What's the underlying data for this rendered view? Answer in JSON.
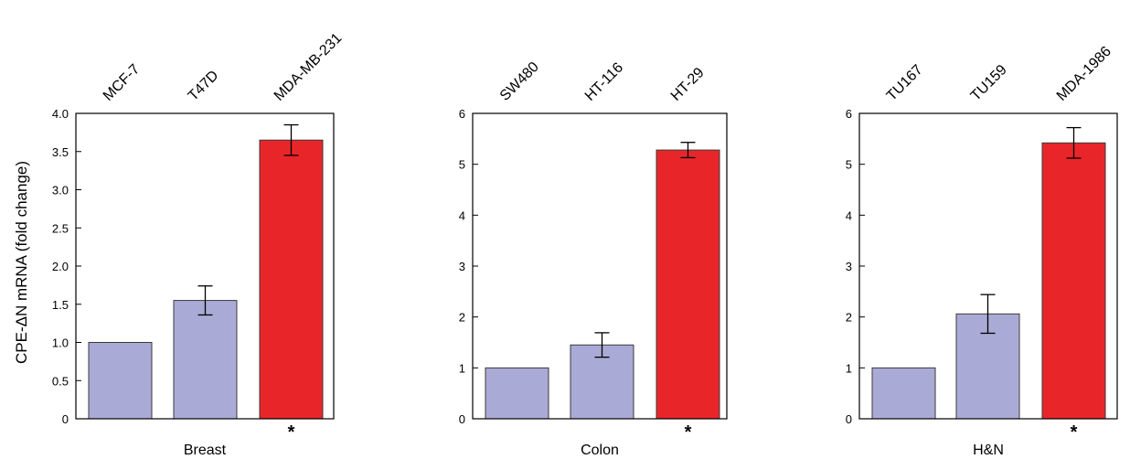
{
  "chart_data": {
    "type": "bar",
    "ylabel": "CPE-ΔN mRNA (fold change)",
    "colors": {
      "low": "#aaaad6",
      "high": "#e8262a",
      "axis": "#000000"
    },
    "panels": [
      {
        "xlabel": "Breast",
        "categories": [
          "MCF-7",
          "T47D",
          "MDA-MB-231"
        ],
        "values": [
          1.0,
          1.55,
          3.65
        ],
        "errors": [
          null,
          0.19,
          0.2
        ],
        "highlight": [
          false,
          false,
          true
        ],
        "significance": [
          "",
          "",
          "*"
        ],
        "ylim": [
          0,
          4.0
        ],
        "yticks": [
          0,
          0.5,
          1.0,
          1.5,
          2.0,
          2.5,
          3.0,
          3.5,
          4.0
        ],
        "ytick_labels": [
          "0",
          "0.5",
          "1.0",
          "1.5",
          "2.0",
          "2.5",
          "3.0",
          "3.5",
          "4.0"
        ]
      },
      {
        "xlabel": "Colon",
        "categories": [
          "SW480",
          "HT-116",
          "HT-29"
        ],
        "values": [
          1.0,
          1.45,
          5.28
        ],
        "errors": [
          null,
          0.24,
          0.15
        ],
        "highlight": [
          false,
          false,
          true
        ],
        "significance": [
          "",
          "",
          "*"
        ],
        "ylim": [
          0,
          6
        ],
        "yticks": [
          0,
          1,
          2,
          3,
          4,
          5,
          6
        ],
        "ytick_labels": [
          "0",
          "1",
          "2",
          "3",
          "4",
          "5",
          "6"
        ]
      },
      {
        "xlabel": "H&N",
        "categories": [
          "TU167",
          "TU159",
          "MDA-1986"
        ],
        "values": [
          1.0,
          2.06,
          5.42
        ],
        "errors": [
          null,
          0.38,
          0.3
        ],
        "highlight": [
          false,
          false,
          true
        ],
        "significance": [
          "",
          "",
          "*"
        ],
        "ylim": [
          0,
          6
        ],
        "yticks": [
          0,
          1,
          2,
          3,
          4,
          5,
          6
        ],
        "ytick_labels": [
          "0",
          "1",
          "2",
          "3",
          "4",
          "5",
          "6"
        ]
      }
    ]
  }
}
